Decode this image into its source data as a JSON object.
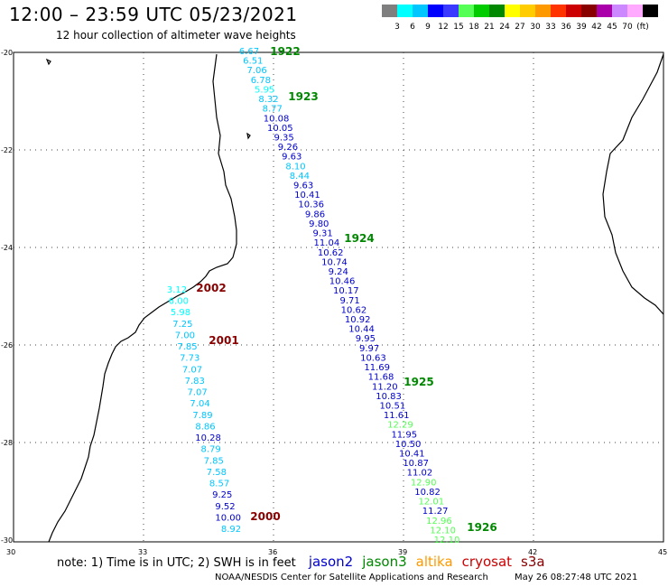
{
  "header": {
    "title": "12:00 – 23:59 UTC 05/23/2021",
    "subtitle": "12 hour collection of altimeter wave heights"
  },
  "scale": {
    "colors": [
      "#7f7f7f",
      "#00ffff",
      "#00c6ff",
      "#0000ff",
      "#3939ff",
      "#55ff55",
      "#00cc00",
      "#008800",
      "#ffff00",
      "#ffcc00",
      "#ff9900",
      "#ff3300",
      "#cc0000",
      "#880000",
      "#aa00aa",
      "#cc88ff",
      "#ffaaff",
      "#000000"
    ],
    "labels": [
      "3",
      "6",
      "9",
      "12",
      "15",
      "18",
      "21",
      "24",
      "27",
      "30",
      "33",
      "36",
      "39",
      "42",
      "45",
      "70",
      "(ft)"
    ]
  },
  "map": {
    "lat_labels": [
      "-20",
      "-22",
      "-24",
      "-26",
      "-28",
      "-30"
    ],
    "lon_labels": [
      "30",
      "33",
      "36",
      "39",
      "42",
      "45"
    ],
    "tracks": [
      {
        "name": "east",
        "points": [
          [
            "6.67",
            "#00c6ff"
          ],
          [
            "6.51",
            "#00c6ff"
          ],
          [
            "7.06",
            "#00c6ff"
          ],
          [
            "6.78",
            "#00c6ff"
          ],
          [
            "5.95",
            "#00ffff"
          ],
          [
            "8.32",
            "#00c6ff"
          ],
          [
            "8.77",
            "#00c6ff"
          ],
          [
            "10.08",
            "#0000cc"
          ],
          [
            "10.05",
            "#0000cc"
          ],
          [
            "9.35",
            "#0000cc"
          ],
          [
            "9.26",
            "#0000cc"
          ],
          [
            "9.63",
            "#0000cc"
          ],
          [
            "8.10",
            "#00c6ff"
          ],
          [
            "8.44",
            "#00c6ff"
          ],
          [
            "9.63",
            "#0000cc"
          ],
          [
            "10.41",
            "#0000cc"
          ],
          [
            "10.36",
            "#0000cc"
          ],
          [
            "9.86",
            "#0000cc"
          ],
          [
            "9.80",
            "#0000cc"
          ],
          [
            "9.31",
            "#0000cc"
          ],
          [
            "11.04",
            "#0000cc"
          ],
          [
            "10.62",
            "#0000cc"
          ],
          [
            "10.74",
            "#0000cc"
          ],
          [
            "9.24",
            "#0000cc"
          ],
          [
            "10.46",
            "#0000cc"
          ],
          [
            "10.17",
            "#0000cc"
          ],
          [
            "9.71",
            "#0000cc"
          ],
          [
            "10.62",
            "#0000cc"
          ],
          [
            "10.92",
            "#0000cc"
          ],
          [
            "10.44",
            "#0000cc"
          ],
          [
            "9.95",
            "#0000cc"
          ],
          [
            "9.97",
            "#0000cc"
          ],
          [
            "10.63",
            "#0000cc"
          ],
          [
            "11.69",
            "#0000cc"
          ],
          [
            "11.68",
            "#0000cc"
          ],
          [
            "11.20",
            "#0000cc"
          ],
          [
            "10.83",
            "#0000cc"
          ],
          [
            "10.51",
            "#0000cc"
          ],
          [
            "11.61",
            "#0000cc"
          ],
          [
            "12.29",
            "#55ff55"
          ],
          [
            "11.95",
            "#0000cc"
          ],
          [
            "10.50",
            "#0000cc"
          ],
          [
            "10.41",
            "#0000cc"
          ],
          [
            "10.87",
            "#0000cc"
          ],
          [
            "11.02",
            "#0000cc"
          ],
          [
            "12.90",
            "#55ff55"
          ],
          [
            "10.82",
            "#0000cc"
          ],
          [
            "12.01",
            "#55ff55"
          ],
          [
            "11.27",
            "#0000cc"
          ],
          [
            "12.96",
            "#55ff55"
          ],
          [
            "12.10",
            "#55ff55"
          ],
          [
            "12.10",
            "#55ff55"
          ]
        ]
      },
      {
        "name": "west",
        "points": [
          [
            "3.12",
            "#00ffff"
          ],
          [
            "6.00",
            "#00ffff"
          ],
          [
            "5.98",
            "#00ffff"
          ],
          [
            "7.25",
            "#00c6ff"
          ],
          [
            "7.00",
            "#00c6ff"
          ],
          [
            "7.85",
            "#00c6ff"
          ],
          [
            "7.73",
            "#00c6ff"
          ],
          [
            "7.07",
            "#00c6ff"
          ],
          [
            "7.83",
            "#00c6ff"
          ],
          [
            "7.07",
            "#00c6ff"
          ],
          [
            "7.04",
            "#00c6ff"
          ],
          [
            "7.89",
            "#00c6ff"
          ],
          [
            "8.86",
            "#00c6ff"
          ],
          [
            "10.28",
            "#0000cc"
          ],
          [
            "8.79",
            "#00c6ff"
          ],
          [
            "7.85",
            "#00c6ff"
          ],
          [
            "7.58",
            "#00c6ff"
          ],
          [
            "8.57",
            "#00c6ff"
          ],
          [
            "9.25",
            "#0000cc"
          ],
          [
            "9.52",
            "#0000cc"
          ],
          [
            "10.00",
            "#0000cc"
          ],
          [
            "8.92",
            "#00c6ff"
          ]
        ]
      }
    ],
    "time_labels": [
      {
        "text": "1922",
        "color": "#008800"
      },
      {
        "text": "1923",
        "color": "#008800"
      },
      {
        "text": "1924",
        "color": "#008800"
      },
      {
        "text": "1925",
        "color": "#008800"
      },
      {
        "text": "1926",
        "color": "#008800"
      },
      {
        "text": "2002",
        "color": "#880000"
      },
      {
        "text": "2001",
        "color": "#880000"
      },
      {
        "text": "2000",
        "color": "#880000"
      }
    ]
  },
  "footer": {
    "note": "note: 1) Time is in UTC; 2) SWH is in feet",
    "satellites": [
      {
        "name": "jason2",
        "color": "#0000cc"
      },
      {
        "name": "jason3",
        "color": "#008800"
      },
      {
        "name": "altika",
        "color": "#ff9900"
      },
      {
        "name": "cryosat",
        "color": "#cc0000"
      },
      {
        "name": "s3a",
        "color": "#880000"
      }
    ],
    "credit": "NOAA/NESDIS Center for Satellite Applications and Research",
    "timestamp": "May 26 08:27:48 UTC 2021"
  }
}
